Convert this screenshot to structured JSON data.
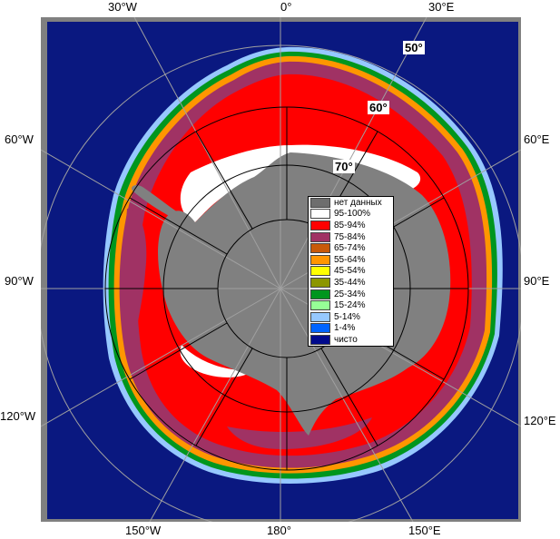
{
  "map": {
    "longitude_labels": {
      "top": [
        "30°W",
        "0°",
        "30°E"
      ],
      "left": [
        "60°W",
        "90°W",
        "120°W"
      ],
      "right": [
        "60°E",
        "90°E",
        "120°E"
      ],
      "bottom": [
        "150°W",
        "180°",
        "150°E"
      ]
    },
    "latitude_labels": [
      "50°",
      "60°",
      "70°"
    ],
    "colors": {
      "ocean": "#0a1880",
      "land": "#808080",
      "frame": "#808080",
      "grid": "#a0a0a0",
      "circle": "#000000"
    }
  },
  "legend": {
    "items": [
      {
        "label": "нет данных",
        "color": "#6e6e6e"
      },
      {
        "label": "95-100%",
        "color": "#ffffff"
      },
      {
        "label": "85-94%",
        "color": "#ff0000"
      },
      {
        "label": "75-84%",
        "color": "#a03264"
      },
      {
        "label": "65-74%",
        "color": "#c85a0a"
      },
      {
        "label": "55-64%",
        "color": "#ff9600"
      },
      {
        "label": "45-54%",
        "color": "#ffff00"
      },
      {
        "label": "35-44%",
        "color": "#8c9600"
      },
      {
        "label": "25-34%",
        "color": "#00961e"
      },
      {
        "label": "15-24%",
        "color": "#96ff96"
      },
      {
        "label": "5-14%",
        "color": "#96c8ff"
      },
      {
        "label": "1-4%",
        "color": "#0064ff"
      },
      {
        "label": "чисто",
        "color": "#000a8c"
      }
    ]
  }
}
